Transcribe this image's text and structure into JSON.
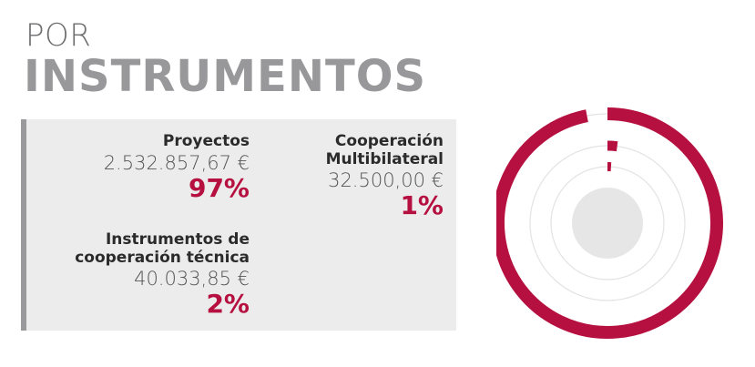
{
  "header": {
    "title_top": "POR",
    "title_main": "INSTRUMENTOS"
  },
  "entries": [
    {
      "name": "Proyectos",
      "amount": "2.532.857,67 €",
      "percent_label": "97%"
    },
    {
      "name": "Cooperación Multibilateral",
      "amount": "32.500,00 €",
      "percent_label": "1%"
    },
    {
      "name": "Instrumentos de cooperación técnica",
      "amount": "40.033,85 €",
      "percent_label": "2%"
    }
  ],
  "chart_data": {
    "type": "radial-bar",
    "categories": [
      "Proyectos",
      "Instrumentos de cooperación técnica",
      "Cooperación Multibilateral"
    ],
    "values": [
      97,
      2,
      1
    ],
    "amounts": [
      2532857.67,
      40033.85,
      32500.0
    ],
    "max": 100
  },
  "colors": {
    "accent": "#b5103f",
    "panel_bg": "#ececec",
    "panel_border": "#9a9a9c",
    "track": "#e3e3e3",
    "center": "#e6e6e6"
  }
}
